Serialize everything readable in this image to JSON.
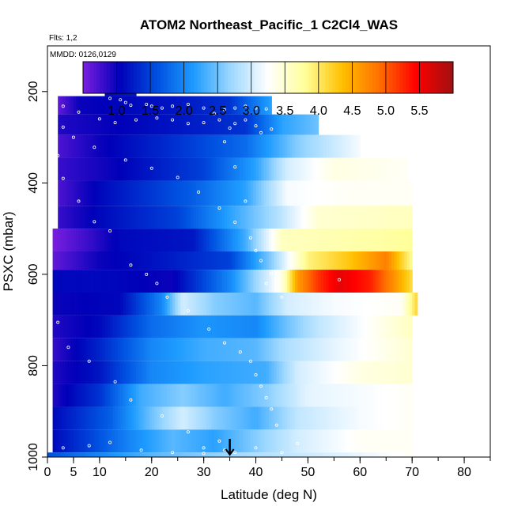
{
  "chart_data": {
    "type": "heatmap",
    "title": "ATOM2 Northeast_Pacific_1 C2Cl4_WAS",
    "subtitle_flights": "Flts: 1,2",
    "subtitle_dates": "MMDD: 0126,0129",
    "xlabel": "Latitude (deg N)",
    "ylabel": "PSXC (mbar)",
    "xlim": [
      0,
      85
    ],
    "ylim": [
      1000,
      100
    ],
    "x_ticks": [
      0,
      5,
      10,
      20,
      30,
      40,
      50,
      60,
      70,
      80
    ],
    "x_tick_labels": [
      "0",
      "5",
      "10",
      "20",
      "30",
      "40",
      "50",
      "60",
      "70",
      "80"
    ],
    "y_ticks": [
      200,
      400,
      600,
      800,
      1000
    ],
    "y_tick_labels": [
      "200",
      "400",
      "600",
      "800",
      "1000"
    ],
    "colorbar": {
      "range": [
        0.5,
        6.0
      ],
      "ticks": [
        1.0,
        1.5,
        2.0,
        2.5,
        3.0,
        3.5,
        4.0,
        4.5,
        5.0,
        5.5
      ],
      "tick_labels": [
        "1.0",
        "1.5",
        "2.0",
        "2.5",
        "3.0",
        "3.5",
        "4.0",
        "4.5",
        "5.0",
        "5.5"
      ],
      "colors": [
        "#7a1ee0",
        "#0000b8",
        "#0050e0",
        "#1e9cff",
        "#9ed8ff",
        "#ffffff",
        "#ffff9a",
        "#ffc000",
        "#ff7000",
        "#ff0000",
        "#a01010"
      ]
    },
    "bands": [
      {
        "p_top": 170,
        "p_bot": 210,
        "x_end": 17,
        "pts": [
          [
            11,
            1.1
          ],
          [
            17,
            1.2
          ]
        ]
      },
      {
        "p_top": 210,
        "p_bot": 250,
        "x_end": 43,
        "pts": [
          [
            2,
            0.6
          ],
          [
            6,
            1.0
          ],
          [
            15,
            1.1
          ],
          [
            25,
            1.2
          ],
          [
            35,
            1.4
          ],
          [
            43,
            2.2
          ]
        ]
      },
      {
        "p_top": 250,
        "p_bot": 295,
        "x_end": 52,
        "pts": [
          [
            2,
            0.9
          ],
          [
            10,
            1.0
          ],
          [
            25,
            1.2
          ],
          [
            38,
            1.4
          ],
          [
            45,
            2.2
          ],
          [
            52,
            2.5
          ]
        ]
      },
      {
        "p_top": 295,
        "p_bot": 345,
        "x_end": 60,
        "pts": [
          [
            2,
            0.7
          ],
          [
            10,
            1.0
          ],
          [
            25,
            1.4
          ],
          [
            38,
            1.8
          ],
          [
            48,
            2.6
          ],
          [
            60,
            3.2
          ]
        ]
      },
      {
        "p_top": 345,
        "p_bot": 395,
        "x_end": 69,
        "pts": [
          [
            2,
            0.8
          ],
          [
            12,
            1.0
          ],
          [
            30,
            1.5
          ],
          [
            40,
            2.2
          ],
          [
            46,
            3.0
          ],
          [
            55,
            3.4
          ],
          [
            69,
            3.3
          ]
        ]
      },
      {
        "p_top": 395,
        "p_bot": 450,
        "x_end": 70,
        "pts": [
          [
            2,
            0.7
          ],
          [
            10,
            1.1
          ],
          [
            28,
            1.7
          ],
          [
            38,
            2.2
          ],
          [
            46,
            3.2
          ],
          [
            58,
            3.3
          ],
          [
            70,
            3.3
          ]
        ]
      },
      {
        "p_top": 450,
        "p_bot": 500,
        "x_end": 70,
        "pts": [
          [
            2,
            0.8
          ],
          [
            10,
            1.1
          ],
          [
            25,
            1.5
          ],
          [
            35,
            2.2
          ],
          [
            44,
            2.8
          ],
          [
            52,
            3.5
          ],
          [
            70,
            3.6
          ]
        ]
      },
      {
        "p_top": 500,
        "p_bot": 550,
        "x_end": 70,
        "pts": [
          [
            1,
            0.5
          ],
          [
            8,
            0.8
          ],
          [
            14,
            1.1
          ],
          [
            28,
            1.2
          ],
          [
            38,
            2.3
          ],
          [
            45,
            3.6
          ],
          [
            58,
            3.7
          ],
          [
            70,
            3.8
          ]
        ]
      },
      {
        "p_top": 550,
        "p_bot": 590,
        "x_end": 70,
        "pts": [
          [
            1,
            0.6
          ],
          [
            10,
            1.0
          ],
          [
            22,
            1.2
          ],
          [
            35,
            1.5
          ],
          [
            43,
            2.6
          ],
          [
            50,
            3.9
          ],
          [
            58,
            4.3
          ],
          [
            65,
            4.8
          ],
          [
            70,
            3.8
          ]
        ]
      },
      {
        "p_top": 590,
        "p_bot": 640,
        "x_end": 70,
        "pts": [
          [
            1,
            1.1
          ],
          [
            12,
            1.1
          ],
          [
            24,
            1.0
          ],
          [
            35,
            2.0
          ],
          [
            45,
            3.4
          ],
          [
            48,
            4.6
          ],
          [
            52,
            5.2
          ],
          [
            56,
            5.6
          ],
          [
            62,
            5.3
          ],
          [
            67,
            4.6
          ],
          [
            70,
            4.1
          ]
        ]
      },
      {
        "p_top": 640,
        "p_bot": 690,
        "x_end": 71,
        "pts": [
          [
            1,
            1.0
          ],
          [
            14,
            1.1
          ],
          [
            22,
            2.0
          ],
          [
            26,
            3.0
          ],
          [
            32,
            2.6
          ],
          [
            40,
            2.4
          ],
          [
            46,
            3.0
          ],
          [
            55,
            3.2
          ],
          [
            68,
            3.3
          ],
          [
            71,
            4.2
          ]
        ]
      },
      {
        "p_top": 690,
        "p_bot": 740,
        "x_end": 70,
        "pts": [
          [
            1,
            0.9
          ],
          [
            10,
            1.1
          ],
          [
            20,
            1.8
          ],
          [
            30,
            2.1
          ],
          [
            40,
            2.0
          ],
          [
            46,
            2.5
          ],
          [
            52,
            2.9
          ],
          [
            70,
            3.6
          ]
        ]
      },
      {
        "p_top": 740,
        "p_bot": 790,
        "x_end": 70,
        "pts": [
          [
            1,
            0.8
          ],
          [
            10,
            1.3
          ],
          [
            20,
            2.0
          ],
          [
            30,
            2.3
          ],
          [
            40,
            2.4
          ],
          [
            46,
            2.8
          ],
          [
            55,
            3.1
          ],
          [
            70,
            3.5
          ]
        ]
      },
      {
        "p_top": 790,
        "p_bot": 840,
        "x_end": 70,
        "pts": [
          [
            1,
            0.9
          ],
          [
            10,
            1.2
          ],
          [
            20,
            2.0
          ],
          [
            30,
            2.2
          ],
          [
            42,
            2.3
          ],
          [
            48,
            3.0
          ],
          [
            60,
            3.4
          ],
          [
            70,
            3.5
          ]
        ]
      },
      {
        "p_top": 840,
        "p_bot": 890,
        "x_end": 70,
        "pts": [
          [
            1,
            0.9
          ],
          [
            10,
            1.4
          ],
          [
            18,
            2.3
          ],
          [
            26,
            2.6
          ],
          [
            34,
            2.3
          ],
          [
            42,
            2.6
          ],
          [
            50,
            3.1
          ],
          [
            70,
            3.3
          ]
        ]
      },
      {
        "p_top": 890,
        "p_bot": 940,
        "x_end": 70,
        "pts": [
          [
            1,
            1.1
          ],
          [
            12,
            1.7
          ],
          [
            20,
            2.5
          ],
          [
            26,
            3.0
          ],
          [
            32,
            2.6
          ],
          [
            40,
            2.3
          ],
          [
            48,
            2.9
          ],
          [
            60,
            3.2
          ],
          [
            70,
            3.3
          ]
        ]
      },
      {
        "p_top": 940,
        "p_bot": 990,
        "x_end": 70,
        "pts": [
          [
            1,
            1.1
          ],
          [
            8,
            1.5
          ],
          [
            16,
            2.0
          ],
          [
            24,
            2.4
          ],
          [
            32,
            2.2
          ],
          [
            40,
            2.6
          ],
          [
            48,
            3.0
          ],
          [
            60,
            3.3
          ],
          [
            70,
            3.3
          ]
        ]
      },
      {
        "p_top": 990,
        "p_bot": 1000,
        "x_end": 70,
        "pts": [
          [
            0,
            1.6
          ],
          [
            20,
            2.4
          ],
          [
            40,
            2.8
          ],
          [
            70,
            3.3
          ]
        ]
      }
    ],
    "sample_points": [
      [
        12,
        215
      ],
      [
        14,
        218
      ],
      [
        15,
        224
      ],
      [
        16,
        230
      ],
      [
        19,
        228
      ],
      [
        20,
        232
      ],
      [
        22,
        236
      ],
      [
        24,
        232
      ],
      [
        27,
        228
      ],
      [
        30,
        236
      ],
      [
        32,
        248
      ],
      [
        34,
        240
      ],
      [
        36,
        236
      ],
      [
        38,
        232
      ],
      [
        40,
        236
      ],
      [
        42,
        238
      ],
      [
        3,
        232
      ],
      [
        6,
        245
      ],
      [
        10,
        260
      ],
      [
        13,
        268
      ],
      [
        17,
        262
      ],
      [
        21,
        258
      ],
      [
        24,
        262
      ],
      [
        27,
        270
      ],
      [
        30,
        268
      ],
      [
        33,
        262
      ],
      [
        36,
        270
      ],
      [
        38,
        262
      ],
      [
        40,
        275
      ],
      [
        41,
        290
      ],
      [
        43,
        282
      ],
      [
        3,
        278
      ],
      [
        5,
        300
      ],
      [
        9,
        322
      ],
      [
        15,
        350
      ],
      [
        20,
        368
      ],
      [
        25,
        388
      ],
      [
        29,
        420
      ],
      [
        33,
        455
      ],
      [
        36,
        486
      ],
      [
        39,
        520
      ],
      [
        40,
        548
      ],
      [
        41,
        570
      ],
      [
        43,
        598
      ],
      [
        44,
        625
      ],
      [
        45,
        650
      ],
      [
        42,
        620
      ],
      [
        38,
        440
      ],
      [
        36,
        365
      ],
      [
        34,
        310
      ],
      [
        35,
        280
      ],
      [
        2,
        340
      ],
      [
        3,
        390
      ],
      [
        6,
        440
      ],
      [
        9,
        485
      ],
      [
        12,
        505
      ],
      [
        16,
        580
      ],
      [
        19,
        600
      ],
      [
        21,
        620
      ],
      [
        23,
        650
      ],
      [
        27,
        680
      ],
      [
        31,
        720
      ],
      [
        34,
        750
      ],
      [
        37,
        770
      ],
      [
        39,
        790
      ],
      [
        40,
        820
      ],
      [
        41,
        845
      ],
      [
        42,
        870
      ],
      [
        43,
        895
      ],
      [
        44,
        930
      ],
      [
        2,
        705
      ],
      [
        4,
        760
      ],
      [
        8,
        790
      ],
      [
        13,
        835
      ],
      [
        16,
        875
      ],
      [
        22,
        910
      ],
      [
        27,
        945
      ],
      [
        30,
        980
      ],
      [
        33,
        965
      ],
      [
        36,
        990
      ],
      [
        3,
        980
      ],
      [
        8,
        975
      ],
      [
        12,
        968
      ],
      [
        18,
        985
      ],
      [
        24,
        990
      ],
      [
        30,
        992
      ],
      [
        34,
        985
      ],
      [
        40,
        980
      ],
      [
        45,
        990
      ],
      [
        48,
        970
      ],
      [
        56,
        612
      ]
    ],
    "marker_latitude": 35,
    "grid": false,
    "legend": "none"
  }
}
